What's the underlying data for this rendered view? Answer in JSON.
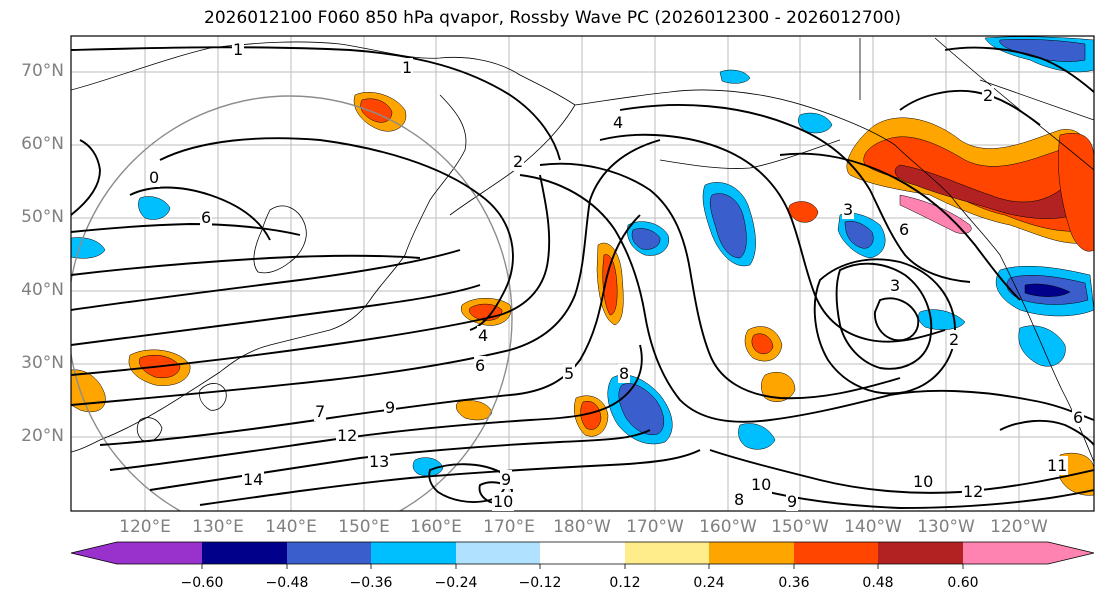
{
  "title": "2026012100 F060 850 hPa qvapor, Rossby Wave PC (2026012300 - 2026012700)",
  "lat_labels": [
    "70°N",
    "60°N",
    "50°N",
    "40°N",
    "30°N",
    "20°N"
  ],
  "lon_labels": [
    "120°E",
    "130°E",
    "140°E",
    "150°E",
    "160°E",
    "170°E",
    "180°W",
    "170°W",
    "160°W",
    "150°W",
    "140°W",
    "130°W",
    "120°W"
  ],
  "colorbar": {
    "colors": [
      "#9932cc",
      "#00008b",
      "#3a5fcd",
      "#00bfff",
      "#b0e2ff",
      "#ffffff",
      "#ffec8b",
      "#ffa500",
      "#ff4500",
      "#b22222",
      "#ff83b0"
    ],
    "tick_labels": [
      "−0.60",
      "−0.48",
      "−0.36",
      "−0.24",
      "−0.12",
      "0.12",
      "0.24",
      "0.36",
      "0.48",
      "0.60"
    ]
  },
  "contour_labels": [
    {
      "text": "1"
    },
    {
      "text": "1"
    },
    {
      "text": "2"
    },
    {
      "text": "4"
    },
    {
      "text": "0"
    },
    {
      "text": "6"
    },
    {
      "text": "3"
    },
    {
      "text": "2"
    },
    {
      "text": "4"
    },
    {
      "text": "6"
    },
    {
      "text": "7"
    },
    {
      "text": "9"
    },
    {
      "text": "12"
    },
    {
      "text": "13"
    },
    {
      "text": "14"
    },
    {
      "text": "9"
    },
    {
      "text": "10"
    },
    {
      "text": "8"
    },
    {
      "text": "10"
    },
    {
      "text": "9"
    },
    {
      "text": "10"
    },
    {
      "text": "12"
    },
    {
      "text": "11"
    },
    {
      "text": "6"
    },
    {
      "text": "6"
    },
    {
      "text": "2"
    },
    {
      "text": "3"
    },
    {
      "text": "8"
    },
    {
      "text": "5"
    }
  ],
  "map_features": [
    "coastlines",
    "gridlines",
    "vapor-anomaly-shading",
    "qvapor-contours",
    "reference-circle"
  ]
}
